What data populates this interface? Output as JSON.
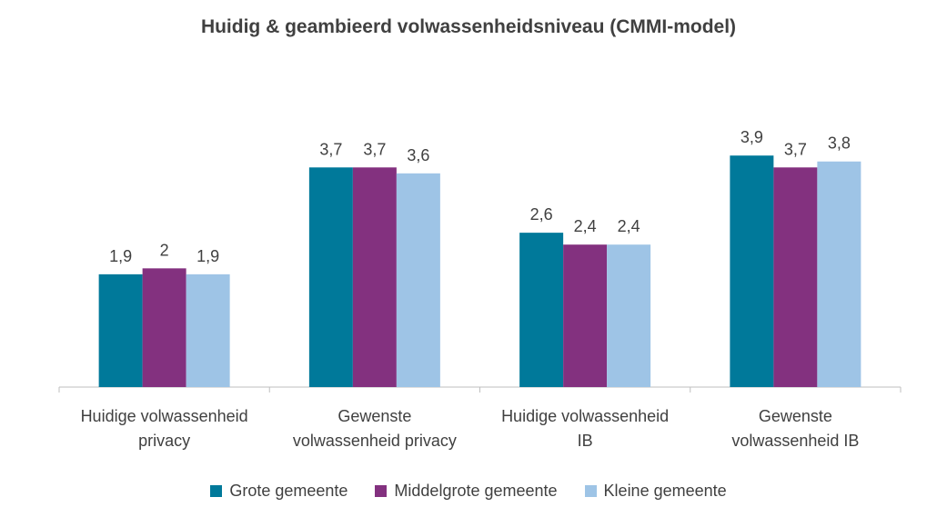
{
  "chart_data": {
    "type": "bar",
    "title": "Huidig & geambieerd volwassenheidsniveau (CMMI-model)",
    "categories": [
      [
        "Huidige volwassenheid",
        "privacy"
      ],
      [
        "Gewenste",
        "volwassenheid privacy"
      ],
      [
        "Huidige volwassenheid",
        "IB"
      ],
      [
        "Gewenste",
        "volwassenheid IB"
      ]
    ],
    "series": [
      {
        "name": "Grote gemeente",
        "color": "#00799a",
        "values": [
          1.9,
          3.7,
          2.6,
          3.9
        ],
        "labels": [
          "1,9",
          "3,7",
          "2,6",
          "3,9"
        ]
      },
      {
        "name": "Middelgrote gemeente",
        "color": "#83317f",
        "values": [
          2.0,
          3.7,
          2.4,
          3.7
        ],
        "labels": [
          "2",
          "3,7",
          "2,4",
          "3,7"
        ]
      },
      {
        "name": "Kleine gemeente",
        "color": "#9ec4e6",
        "values": [
          1.9,
          3.6,
          2.4,
          3.8
        ],
        "labels": [
          "1,9",
          "3,6",
          "2,4",
          "3,8"
        ]
      }
    ],
    "ylim": [
      0,
      4.5
    ],
    "grid": false,
    "legend_position": "bottom",
    "y_axis_visible": false
  }
}
